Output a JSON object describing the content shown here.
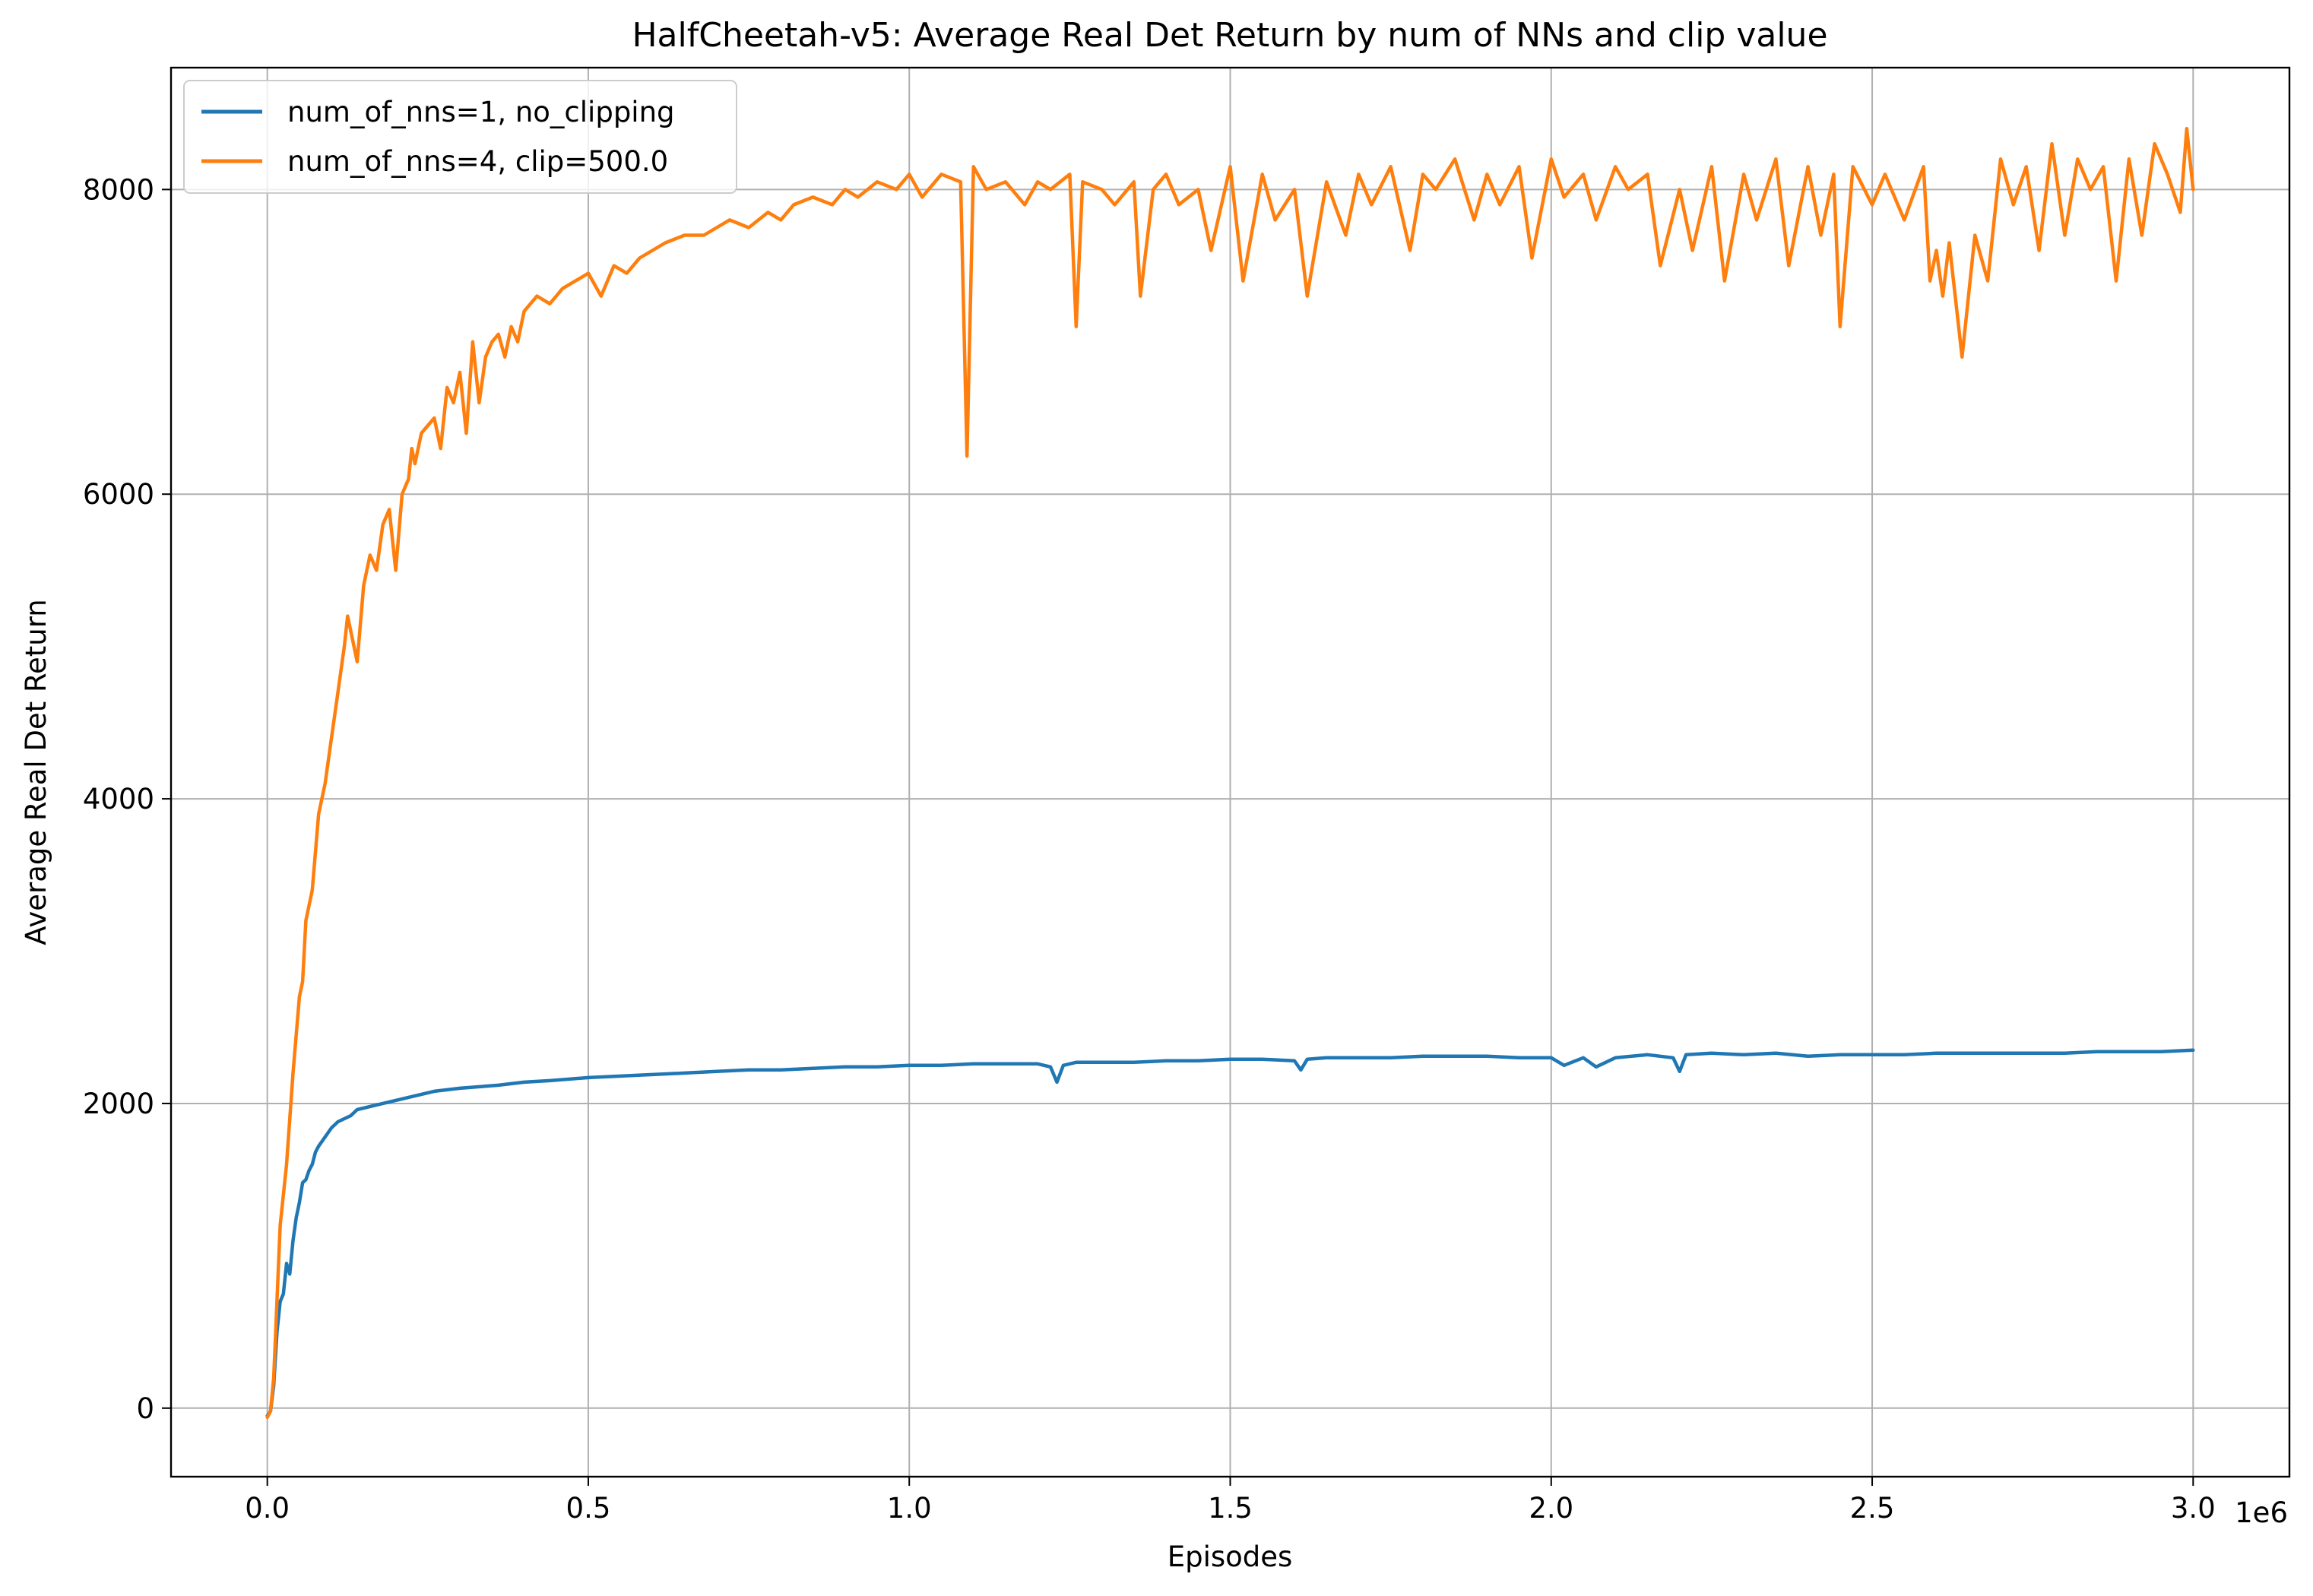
{
  "chart_data": {
    "type": "line",
    "title": "HalfCheetah-v5: Average Real Det Return by num of NNs and clip value",
    "xlabel": "Episodes",
    "ylabel": "Average Real Det Return",
    "x_offset_label": "1e6",
    "x_scale": 1000000,
    "xlim": [
      -0.15,
      3.15
    ],
    "ylim": [
      -450,
      8800
    ],
    "x_ticks": [
      0.0,
      0.5,
      1.0,
      1.5,
      2.0,
      2.5,
      3.0
    ],
    "x_tick_labels": [
      "0.0",
      "0.5",
      "1.0",
      "1.5",
      "2.0",
      "2.5",
      "3.0"
    ],
    "y_ticks": [
      0,
      2000,
      4000,
      6000,
      8000
    ],
    "y_tick_labels": [
      "0",
      "2000",
      "4000",
      "6000",
      "8000"
    ],
    "grid": true,
    "legend_position": "top-left",
    "series": [
      {
        "name": "num_of_nns=1, no_clipping",
        "color": "#1f77b4",
        "x": [
          0.0,
          0.005,
          0.01,
          0.015,
          0.02,
          0.025,
          0.03,
          0.035,
          0.04,
          0.045,
          0.05,
          0.055,
          0.06,
          0.065,
          0.07,
          0.075,
          0.08,
          0.09,
          0.1,
          0.11,
          0.12,
          0.13,
          0.14,
          0.15,
          0.16,
          0.17,
          0.18,
          0.19,
          0.2,
          0.22,
          0.24,
          0.26,
          0.28,
          0.3,
          0.33,
          0.36,
          0.4,
          0.44,
          0.5,
          0.55,
          0.6,
          0.65,
          0.7,
          0.75,
          0.8,
          0.85,
          0.9,
          0.95,
          1.0,
          1.05,
          1.1,
          1.15,
          1.2,
          1.22,
          1.23,
          1.24,
          1.26,
          1.3,
          1.35,
          1.4,
          1.45,
          1.5,
          1.55,
          1.6,
          1.61,
          1.62,
          1.65,
          1.7,
          1.75,
          1.8,
          1.85,
          1.9,
          1.95,
          2.0,
          2.02,
          2.05,
          2.07,
          2.1,
          2.15,
          2.19,
          2.2,
          2.21,
          2.25,
          2.3,
          2.35,
          2.4,
          2.45,
          2.5,
          2.55,
          2.6,
          2.65,
          2.7,
          2.75,
          2.8,
          2.85,
          2.9,
          2.95,
          3.0
        ],
        "y": [
          -50,
          -20,
          150,
          500,
          700,
          750,
          950,
          880,
          1100,
          1250,
          1350,
          1480,
          1500,
          1560,
          1600,
          1680,
          1720,
          1780,
          1840,
          1880,
          1900,
          1920,
          1960,
          1970,
          1980,
          1990,
          2000,
          2010,
          2020,
          2040,
          2060,
          2080,
          2090,
          2100,
          2110,
          2120,
          2140,
          2150,
          2170,
          2180,
          2190,
          2200,
          2210,
          2220,
          2220,
          2230,
          2240,
          2240,
          2250,
          2250,
          2260,
          2260,
          2260,
          2240,
          2140,
          2250,
          2270,
          2270,
          2270,
          2280,
          2280,
          2290,
          2290,
          2280,
          2220,
          2290,
          2300,
          2300,
          2300,
          2310,
          2310,
          2310,
          2300,
          2300,
          2250,
          2300,
          2240,
          2300,
          2320,
          2300,
          2210,
          2320,
          2330,
          2320,
          2330,
          2310,
          2320,
          2320,
          2320,
          2330,
          2330,
          2330,
          2330,
          2330,
          2340,
          2340,
          2340,
          2350
        ]
      },
      {
        "name": "num_of_nns=4, clip=500.0",
        "color": "#ff7f0e",
        "x": [
          0.0,
          0.005,
          0.01,
          0.02,
          0.03,
          0.04,
          0.05,
          0.055,
          0.06,
          0.07,
          0.08,
          0.09,
          0.1,
          0.11,
          0.12,
          0.125,
          0.13,
          0.14,
          0.15,
          0.155,
          0.16,
          0.17,
          0.18,
          0.19,
          0.2,
          0.21,
          0.22,
          0.225,
          0.23,
          0.24,
          0.25,
          0.26,
          0.27,
          0.28,
          0.29,
          0.3,
          0.31,
          0.32,
          0.33,
          0.34,
          0.35,
          0.36,
          0.37,
          0.38,
          0.39,
          0.4,
          0.42,
          0.44,
          0.46,
          0.48,
          0.5,
          0.52,
          0.54,
          0.56,
          0.58,
          0.6,
          0.62,
          0.65,
          0.68,
          0.7,
          0.72,
          0.75,
          0.78,
          0.8,
          0.82,
          0.85,
          0.88,
          0.9,
          0.92,
          0.95,
          0.98,
          1.0,
          1.02,
          1.05,
          1.08,
          1.09,
          1.1,
          1.12,
          1.15,
          1.18,
          1.2,
          1.22,
          1.25,
          1.26,
          1.27,
          1.3,
          1.32,
          1.35,
          1.36,
          1.38,
          1.4,
          1.42,
          1.45,
          1.47,
          1.5,
          1.52,
          1.55,
          1.57,
          1.6,
          1.62,
          1.65,
          1.68,
          1.7,
          1.72,
          1.75,
          1.78,
          1.8,
          1.82,
          1.85,
          1.88,
          1.9,
          1.92,
          1.95,
          1.97,
          2.0,
          2.02,
          2.05,
          2.07,
          2.1,
          2.12,
          2.15,
          2.17,
          2.2,
          2.22,
          2.25,
          2.27,
          2.3,
          2.32,
          2.35,
          2.37,
          2.4,
          2.42,
          2.44,
          2.45,
          2.47,
          2.5,
          2.52,
          2.55,
          2.58,
          2.59,
          2.6,
          2.61,
          2.62,
          2.64,
          2.66,
          2.68,
          2.7,
          2.72,
          2.74,
          2.76,
          2.78,
          2.8,
          2.82,
          2.84,
          2.86,
          2.88,
          2.9,
          2.92,
          2.94,
          2.96,
          2.98,
          2.99,
          3.0
        ],
        "y": [
          -60,
          -20,
          200,
          1200,
          1600,
          2200,
          2700,
          2800,
          3200,
          3400,
          3900,
          4100,
          4400,
          4700,
          5000,
          5200,
          5100,
          4900,
          5400,
          5500,
          5600,
          5500,
          5800,
          5900,
          5500,
          6000,
          6100,
          6300,
          6200,
          6400,
          6450,
          6500,
          6300,
          6700,
          6600,
          6800,
          6400,
          7000,
          6600,
          6900,
          7000,
          7050,
          6900,
          7100,
          7000,
          7200,
          7300,
          7250,
          7350,
          7400,
          7450,
          7300,
          7500,
          7450,
          7550,
          7600,
          7650,
          7700,
          7700,
          7750,
          7800,
          7750,
          7850,
          7800,
          7900,
          7950,
          7900,
          8000,
          7950,
          8050,
          8000,
          8100,
          7950,
          8100,
          8050,
          6250,
          8150,
          8000,
          8050,
          7900,
          8050,
          8000,
          8100,
          7100,
          8050,
          8000,
          7900,
          8050,
          7300,
          8000,
          8100,
          7900,
          8000,
          7600,
          8150,
          7400,
          8100,
          7800,
          8000,
          7300,
          8050,
          7700,
          8100,
          7900,
          8150,
          7600,
          8100,
          8000,
          8200,
          7800,
          8100,
          7900,
          8150,
          7550,
          8200,
          7950,
          8100,
          7800,
          8150,
          8000,
          8100,
          7500,
          8000,
          7600,
          8150,
          7400,
          8100,
          7800,
          8200,
          7500,
          8150,
          7700,
          8100,
          7100,
          8150,
          7900,
          8100,
          7800,
          8150,
          7400,
          7600,
          7300,
          7650,
          6900,
          7700,
          7400,
          8200,
          7900,
          8150,
          7600,
          8300,
          7700,
          8200,
          8000,
          8150,
          7400,
          8200,
          7700,
          8300,
          8100,
          7850,
          8400,
          8000
        ]
      }
    ]
  }
}
